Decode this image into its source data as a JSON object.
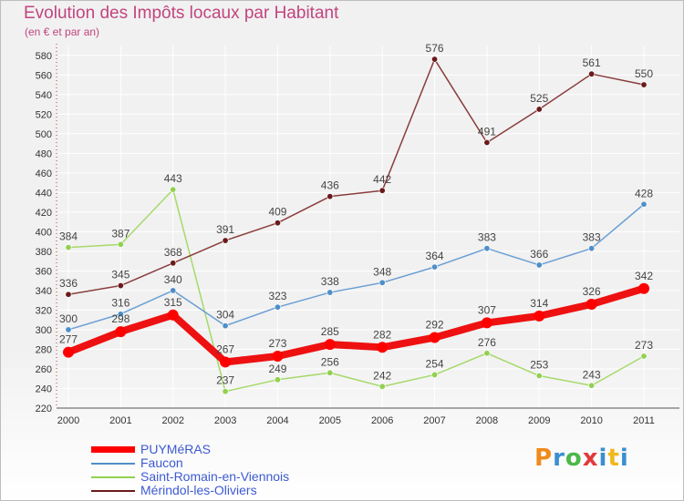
{
  "header": {
    "title": "Evolution des Impôts locaux par Habitant",
    "subtitle": "(en € et par an)"
  },
  "logo": {
    "text": "Proxiti"
  },
  "chart_data": {
    "type": "line",
    "categories": [
      "2000",
      "2001",
      "2002",
      "2003",
      "2004",
      "2005",
      "2006",
      "2007",
      "2008",
      "2009",
      "2010",
      "2011"
    ],
    "ylim": [
      220,
      590
    ],
    "yticks": [
      220,
      240,
      260,
      280,
      300,
      320,
      340,
      360,
      380,
      400,
      420,
      440,
      460,
      480,
      500,
      520,
      540,
      560,
      580
    ],
    "grid": true,
    "legend_position": "bottom-left",
    "series": [
      {
        "name": "PUYMéRAS",
        "color": "#ff0000",
        "line_color": "#ee1111",
        "label_color": "#444444",
        "values": [
          277,
          298,
          315,
          267,
          273,
          285,
          282,
          292,
          307,
          314,
          326,
          342
        ]
      },
      {
        "name": "Faucon",
        "color": "#4f8fc9",
        "line_color": "#6a9fd4",
        "label_color": "#444444",
        "values": [
          300,
          316,
          340,
          304,
          323,
          338,
          348,
          364,
          383,
          366,
          383,
          428
        ]
      },
      {
        "name": "Saint-Romain-en-Viennois",
        "color": "#92d050",
        "line_color": "#a6d96a",
        "label_color": "#444444",
        "values": [
          384,
          387,
          443,
          237,
          249,
          256,
          242,
          254,
          276,
          253,
          243,
          273
        ]
      },
      {
        "name": "Mérindol-les-Oliviers",
        "color": "#6a1a1a",
        "line_color": "#8a3d3d",
        "label_color": "#444444",
        "values": [
          336,
          345,
          368,
          391,
          409,
          436,
          442,
          576,
          491,
          525,
          561,
          550
        ]
      }
    ]
  }
}
